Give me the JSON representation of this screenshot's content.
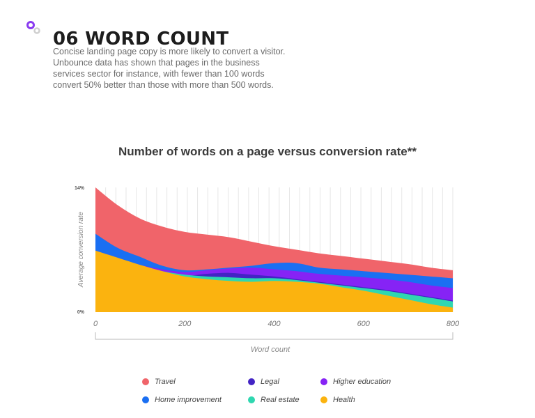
{
  "header": {
    "title": "06 WORD COUNT",
    "intro": "Concise landing page copy is more likely to convert a visitor. Unbounce data has shown that pages in the business services sector for instance, with fewer than 100 words convert 50% better than those with more than 500 words."
  },
  "colors": {
    "logo_primary": "#8a3cf0",
    "logo_secondary": "#cfcfcf"
  },
  "chart_data": {
    "type": "area",
    "title": "Number of words on a page versus conversion rate**",
    "xlabel": "Word count",
    "ylabel": "Average conversion rate",
    "xlim": [
      0,
      800
    ],
    "x_ticks": [
      "0",
      "200",
      "400",
      "600",
      "800"
    ],
    "y_ticks": [
      "14%",
      "0%"
    ],
    "ylim": [
      0,
      14
    ],
    "grid": "vertical",
    "legend_position": "bottom",
    "x": [
      0,
      50,
      100,
      150,
      200,
      250,
      300,
      350,
      400,
      450,
      500,
      550,
      600,
      650,
      700,
      750,
      800
    ],
    "series": [
      {
        "name": "Travel",
        "color": "#f0646a",
        "values": [
          14.0,
          12.0,
          10.5,
          9.6,
          9.0,
          8.7,
          8.4,
          7.9,
          7.4,
          7.0,
          6.6,
          6.3,
          6.0,
          5.7,
          5.4,
          5.0,
          4.7
        ]
      },
      {
        "name": "Home improvement",
        "color": "#1a6ff2",
        "values": [
          8.8,
          7.2,
          6.2,
          5.2,
          4.7,
          4.8,
          5.0,
          5.2,
          5.5,
          5.5,
          5.0,
          4.8,
          4.6,
          4.4,
          4.2,
          4.0,
          3.8
        ]
      },
      {
        "name": "Higher education",
        "color": "#8623f5",
        "values": [
          6.9,
          6.1,
          5.3,
          4.8,
          4.5,
          4.7,
          4.9,
          5.0,
          4.8,
          4.6,
          4.3,
          4.1,
          3.9,
          3.7,
          3.4,
          3.0,
          2.7
        ]
      },
      {
        "name": "Legal",
        "color": "#4324c4",
        "values": [
          6.6,
          5.8,
          5.0,
          4.5,
          4.1,
          4.3,
          4.4,
          4.2,
          4.0,
          3.7,
          3.4,
          3.1,
          2.8,
          2.5,
          2.1,
          1.7,
          1.3
        ]
      },
      {
        "name": "Real estate",
        "color": "#2fd7b0",
        "values": [
          6.8,
          6.0,
          5.2,
          4.6,
          4.2,
          4.0,
          3.9,
          3.8,
          3.8,
          3.6,
          3.3,
          3.0,
          2.7,
          2.4,
          2.0,
          1.6,
          1.2
        ]
      },
      {
        "name": "Health",
        "color": "#fbb30f",
        "values": [
          6.9,
          6.1,
          5.3,
          4.6,
          4.0,
          3.7,
          3.5,
          3.4,
          3.5,
          3.4,
          3.2,
          2.8,
          2.4,
          1.9,
          1.4,
          0.9,
          0.5
        ]
      }
    ]
  }
}
